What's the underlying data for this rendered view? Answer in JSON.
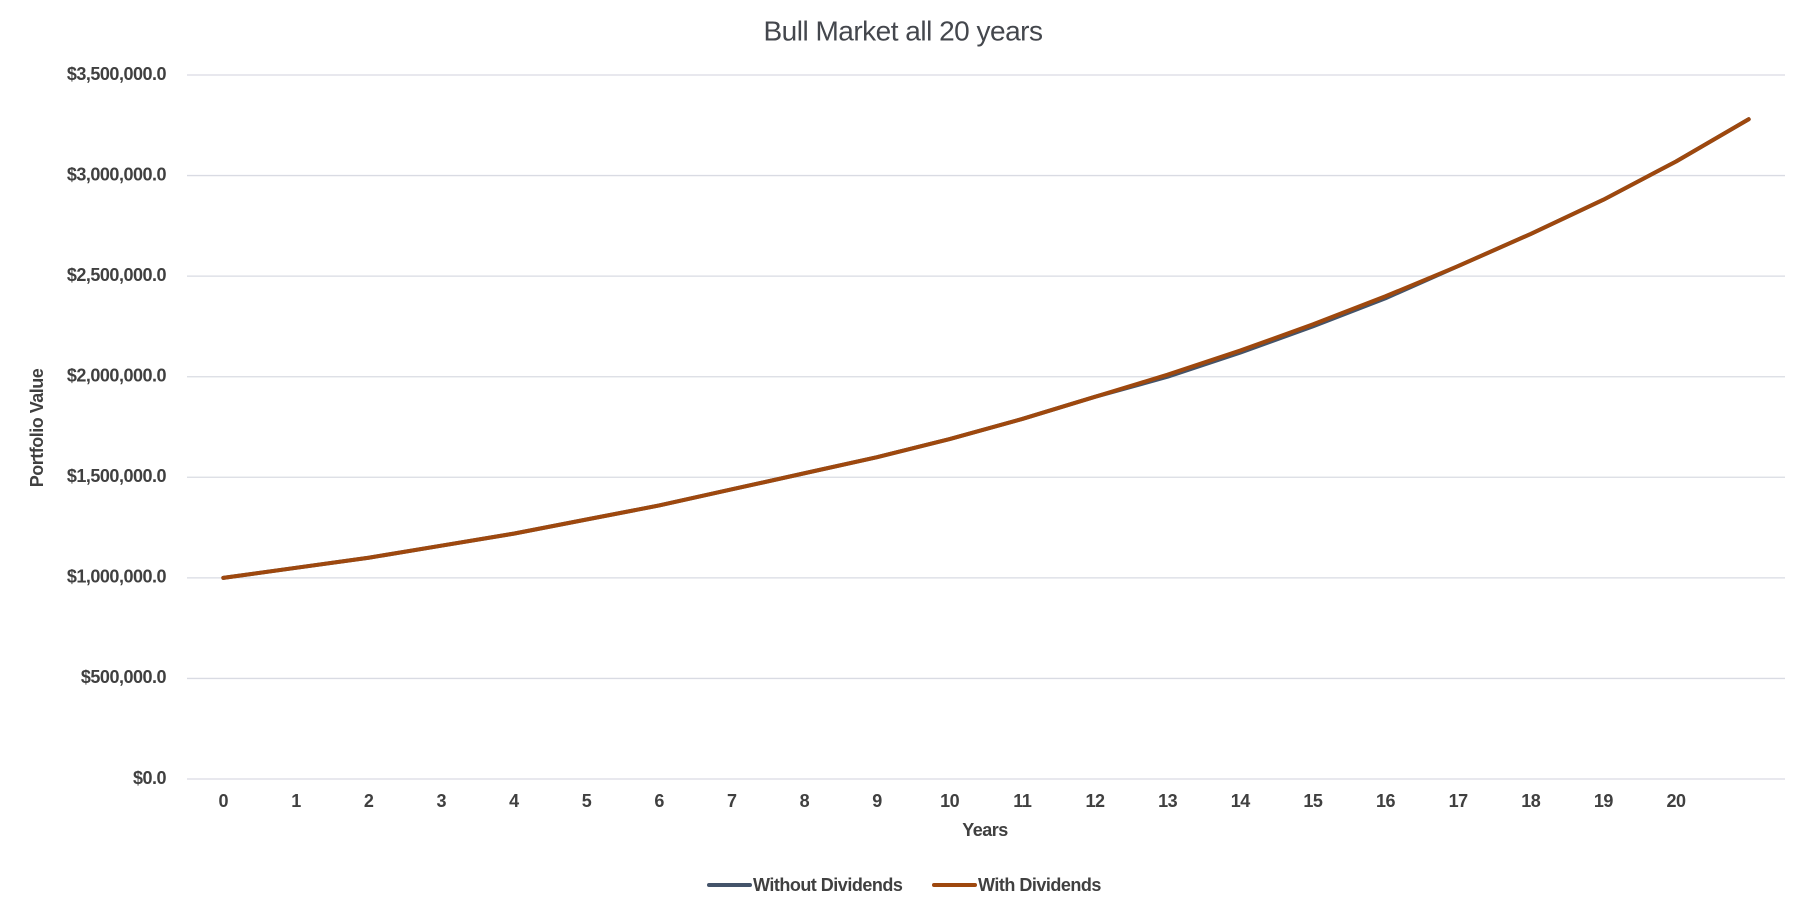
{
  "chart_data": {
    "type": "line",
    "title": "Bull Market all 20 years",
    "x_label": "Years",
    "y_label": "Portfolio Value",
    "categories": [
      "0",
      "1",
      "2",
      "3",
      "4",
      "5",
      "6",
      "7",
      "8",
      "9",
      "10",
      "11",
      "12",
      "13",
      "14",
      "15",
      "16",
      "17",
      "18",
      "19",
      "20",
      null
    ],
    "series": [
      {
        "name": "Without Dividends",
        "color": "#44546a",
        "values": [
          1000000,
          1050000,
          1100000,
          1160000,
          1220000,
          1290000,
          1360000,
          1440000,
          1520000,
          1600000,
          1690000,
          1790000,
          1900000,
          2000000,
          2120000,
          2250000,
          2390000,
          2550000,
          2710000,
          2880000,
          3070000,
          3280000
        ]
      },
      {
        "name": "With Dividends",
        "color": "#9e480e",
        "values": [
          1000000,
          1050000,
          1100000,
          1160000,
          1220000,
          1290000,
          1360000,
          1440000,
          1520000,
          1600000,
          1690000,
          1790000,
          1900000,
          2010000,
          2130000,
          2260000,
          2400000,
          2550000,
          2710000,
          2880000,
          3070000,
          3280000
        ]
      }
    ],
    "ylim": [
      0,
      3500000
    ],
    "yticks": [
      {
        "value": 0,
        "label": "$0.0"
      },
      {
        "value": 500000,
        "label": "$500,000.0"
      },
      {
        "value": 1000000,
        "label": "$1,000,000.0"
      },
      {
        "value": 1500000,
        "label": "$1,500,000.0"
      },
      {
        "value": 2000000,
        "label": "$2,000,000.0"
      },
      {
        "value": 2500000,
        "label": "$2,500,000.0"
      },
      {
        "value": 3000000,
        "label": "$3,000,000.0"
      },
      {
        "value": 3500000,
        "label": "$3,500,000.0"
      }
    ],
    "grid": true,
    "legend": "bottom"
  }
}
